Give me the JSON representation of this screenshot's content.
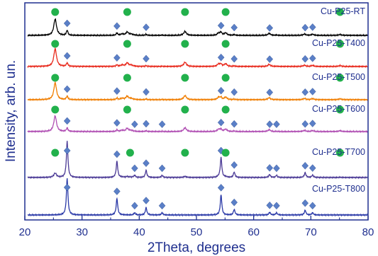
{
  "chart_data": {
    "type": "line",
    "xlabel": "2Theta, degrees",
    "ylabel": "Intensity, arb. un.",
    "xlim": [
      20,
      80
    ],
    "xticks": [
      "20",
      "30",
      "40",
      "50",
      "60",
      "70",
      "80"
    ],
    "grid": false,
    "legend": "labels on right side of each trace",
    "series": [
      {
        "name": "Cu-P25-RT",
        "color": "#000000",
        "anatase": [
          25.3,
          37.9,
          48.0,
          55.1,
          75.1
        ],
        "rutile": [
          27.4,
          36.1,
          41.2,
          54.3,
          56.6,
          62.8,
          69.0,
          70.3
        ]
      },
      {
        "name": "Cu-P25-T400",
        "color": "#e8291c",
        "anatase": [
          25.3,
          37.9,
          48.0,
          55.1,
          75.1
        ],
        "rutile": [
          27.4,
          36.1,
          41.2,
          54.3,
          56.6,
          62.8,
          69.0,
          70.3
        ]
      },
      {
        "name": "Cu-P25-T500",
        "color": "#f07d00",
        "anatase": [
          25.3,
          37.9,
          48.0,
          55.1,
          75.1
        ],
        "rutile": [
          27.4,
          36.1,
          41.2,
          54.3,
          56.6,
          62.8,
          69.0,
          70.3
        ]
      },
      {
        "name": "Cu-P25-T600",
        "color": "#b04fb3",
        "anatase": [
          25.3,
          37.9,
          48.0,
          55.1,
          75.1
        ],
        "rutile": [
          27.4,
          36.1,
          39.2,
          41.2,
          44.0,
          54.3,
          56.6,
          62.8,
          64.0,
          69.0,
          70.3
        ]
      },
      {
        "name": "Cu-P25-T700",
        "color": "#4b3a96",
        "anatase": [
          25.3,
          38.4,
          48.0,
          55.1,
          75.1
        ],
        "rutile": [
          27.4,
          36.1,
          39.2,
          41.2,
          44.0,
          54.3,
          56.6,
          62.8,
          64.0,
          69.0,
          70.3
        ]
      },
      {
        "name": "Cu-P25-T800",
        "color": "#2b3aa8",
        "anatase": [],
        "rutile": [
          27.4,
          36.1,
          39.2,
          41.2,
          44.0,
          54.3,
          56.6,
          62.8,
          64.0,
          69.0,
          70.3
        ]
      }
    ],
    "marker_colors": {
      "anatase": "#22b14c",
      "rutile": "#5a7fc7"
    }
  }
}
